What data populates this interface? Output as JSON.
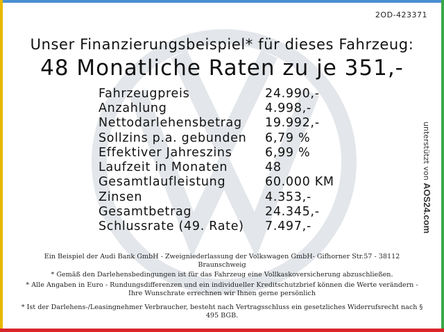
{
  "reference_code": "2OD-423371",
  "headline": {
    "line1": "Unser Finanzierungsbeispiel* für dieses Fahrzeug:",
    "line2": "48 Monatliche Raten zu je 351,-"
  },
  "finance_rows": [
    {
      "label": "Fahrzeugpreis",
      "value": "24.990,-"
    },
    {
      "label": "Anzahlung",
      "value": "4.998,-"
    },
    {
      "label": "Nettodarlehensbetrag",
      "value": "19.992,-"
    },
    {
      "label": "Sollzins p.a. gebunden",
      "value": "6,79 %"
    },
    {
      "label": "Effektiver Jahreszins",
      "value": "6,99 %"
    },
    {
      "label": "Laufzeit in Monaten",
      "value": "48"
    },
    {
      "label": "Gesamtlaufleistung",
      "value": "60.000 KM"
    },
    {
      "label": "Zinsen",
      "value": "4.353,-"
    },
    {
      "label": "Gesamtbetrag",
      "value": "24.345,-"
    },
    {
      "label": "Schlussrate (49. Rate)",
      "value": "7.497,-"
    }
  ],
  "footnotes": {
    "bank": "Ein Beispiel der Audi Bank GmbH - Zweigniederlassung der Volkswagen GmbH- Gifhorner Str.57 - 38112 Braunschweig",
    "insurance": "* Gemäß den Darlehensbedingungen ist für das Fahrzeug eine Vollkaskoversicherung abzuschließen.",
    "amounts": "* Alle Angaben in Euro - Rundungsdifferenzen und ein individueller Kreditschutzbrief können die Werte verändern - Ihre Wunschrate errechnen wir Ihnen gerne persönlich",
    "withdrawal": "* Ist der Darlehens-/Leasingnehmer Verbraucher, besteht nach Vertragsschluss ein gesetzliches Widerrufsrecht nach § 495 BGB."
  },
  "side_label": {
    "prefix": "unterstützt von",
    "brand": "AOS24.com"
  },
  "colors": {
    "top_border": "#4a8fd0",
    "left_border": "#e8b800",
    "right_border": "#3aa84a",
    "bottom_border": "#d8262b",
    "watermark": "#dfe3e8"
  },
  "icons": {
    "watermark": "vw-logo-watermark"
  }
}
